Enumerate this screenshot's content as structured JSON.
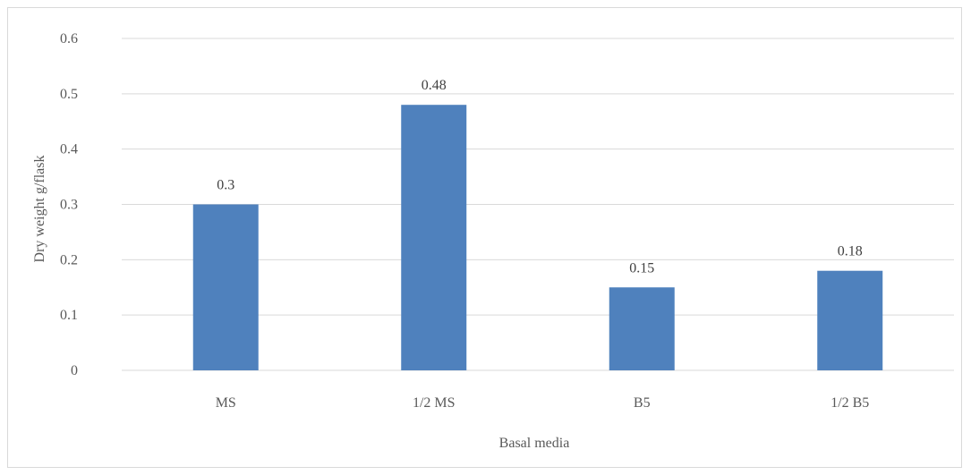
{
  "chart_data": {
    "type": "bar",
    "title": "",
    "xlabel": "Basal media",
    "ylabel": "Dry weight g/flask",
    "categories": [
      "MS",
      "1/2 MS",
      "B5",
      "1/2 B5"
    ],
    "values": [
      0.3,
      0.48,
      0.15,
      0.18
    ],
    "data_labels": [
      "0.3",
      "0.48",
      "0.15",
      "0.18"
    ],
    "ylim": [
      0,
      0.6
    ],
    "yticks": [
      0,
      0.1,
      0.2,
      0.3,
      0.4,
      0.5,
      0.6
    ],
    "ytick_labels": [
      "0",
      "0.1",
      "0.2",
      "0.3",
      "0.4",
      "0.5",
      "0.6"
    ],
    "grid": true,
    "legend": "none",
    "bar_color": "#4f81bd",
    "grid_color": "#d9d9d9"
  }
}
